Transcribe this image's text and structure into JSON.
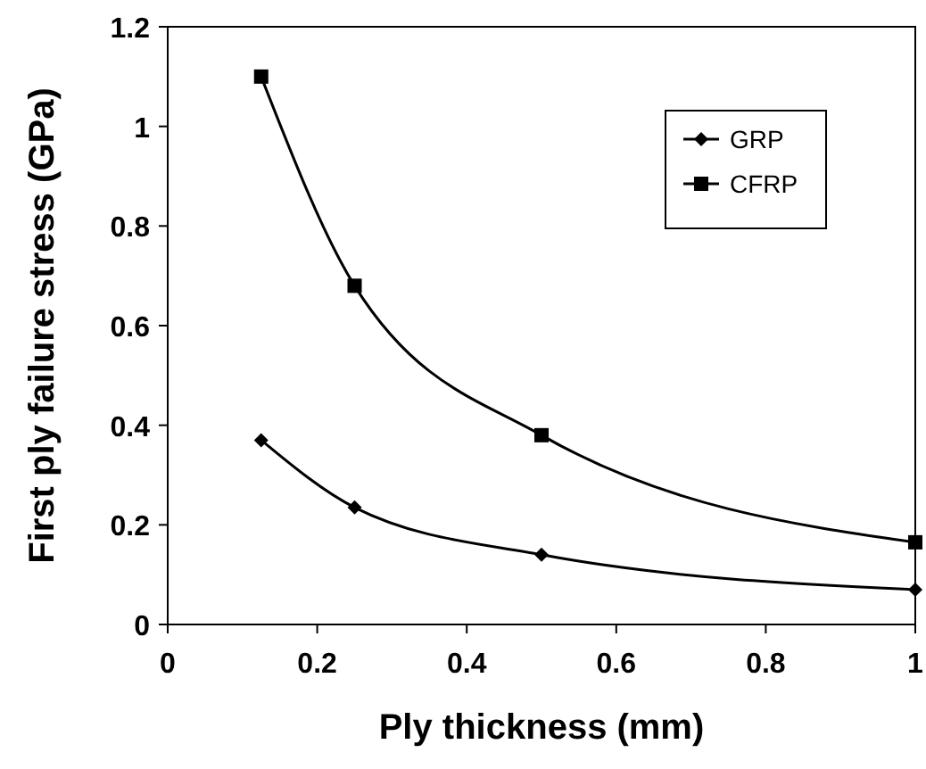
{
  "chart_data": {
    "type": "line",
    "xlabel": "Ply thickness (mm)",
    "ylabel": "First ply failure stress (GPa)",
    "x": [
      0.125,
      0.25,
      0.5,
      1
    ],
    "series": [
      {
        "name": "GRP",
        "color": "#000000",
        "marker": "diamond",
        "values": [
          0.37,
          0.235,
          0.14,
          0.07
        ]
      },
      {
        "name": "CFRP",
        "color": "#000000",
        "marker": "square",
        "values": [
          1.1,
          0.68,
          0.38,
          0.165
        ]
      }
    ],
    "xlim": [
      0,
      1
    ],
    "xticks": [
      0,
      0.2,
      0.4,
      0.6,
      0.8,
      1
    ],
    "ylim": [
      0,
      1.2
    ],
    "yticks": [
      0,
      0.2,
      0.4,
      0.6,
      0.8,
      1,
      1.2
    ],
    "grid": false,
    "legend": "top right"
  }
}
